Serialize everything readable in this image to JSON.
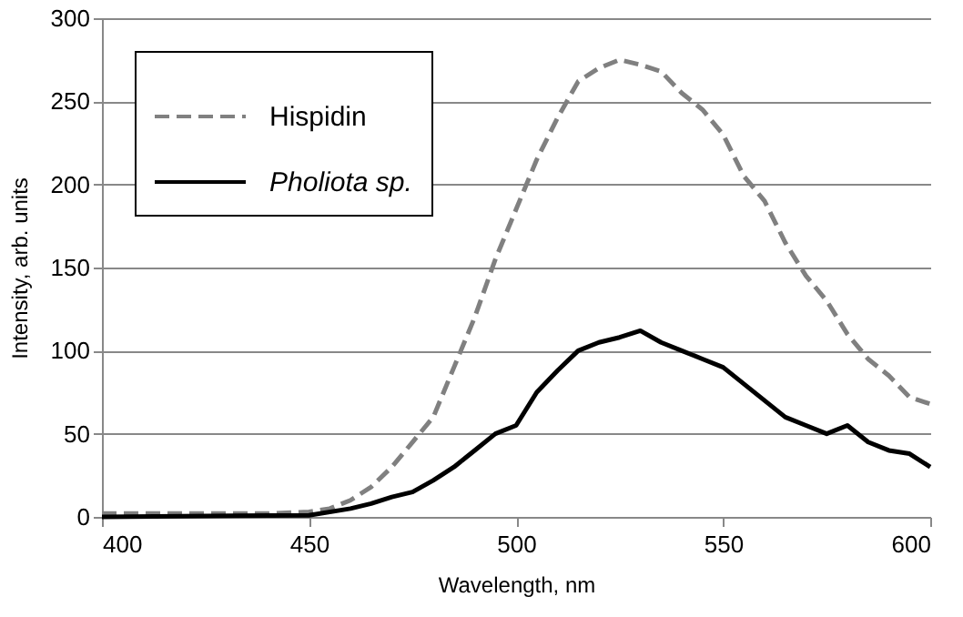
{
  "chart_data": {
    "type": "line",
    "xlabel": "Wavelength, nm",
    "ylabel": "Intensity, arb. units",
    "xlim": [
      400,
      600
    ],
    "xticks": [
      400,
      450,
      500,
      550,
      600
    ],
    "ylim": [
      0,
      300
    ],
    "yticks": [
      0,
      50,
      100,
      150,
      200,
      250,
      300
    ],
    "grid": "y",
    "legend": "top left",
    "series": [
      {
        "name": "Hispidin",
        "color": "#808080",
        "line_style": "dashed",
        "x": [
          400,
          420,
          440,
          450,
          455,
          460,
          465,
          470,
          475,
          480,
          485,
          490,
          495,
          500,
          505,
          510,
          515,
          520,
          525,
          530,
          535,
          540,
          545,
          550,
          555,
          560,
          565,
          570,
          575,
          580,
          585,
          590,
          595,
          600
        ],
        "values": [
          2,
          2,
          2,
          3,
          5,
          10,
          18,
          30,
          45,
          60,
          90,
          120,
          155,
          185,
          215,
          240,
          262,
          270,
          275,
          272,
          268,
          255,
          245,
          230,
          205,
          190,
          165,
          145,
          130,
          110,
          95,
          85,
          72,
          68
        ]
      },
      {
        "name": "Pholiota sp.",
        "color": "#000000",
        "line_style": "solid",
        "x": [
          400,
          450,
          460,
          465,
          470,
          475,
          480,
          485,
          490,
          495,
          500,
          505,
          510,
          515,
          520,
          525,
          530,
          535,
          540,
          545,
          550,
          555,
          560,
          565,
          570,
          575,
          580,
          585,
          590,
          595,
          600
        ],
        "values": [
          0,
          1,
          5,
          8,
          12,
          15,
          22,
          30,
          40,
          50,
          55,
          75,
          88,
          100,
          105,
          108,
          112,
          105,
          100,
          95,
          90,
          80,
          70,
          60,
          55,
          50,
          55,
          45,
          40,
          38,
          30
        ]
      }
    ]
  }
}
